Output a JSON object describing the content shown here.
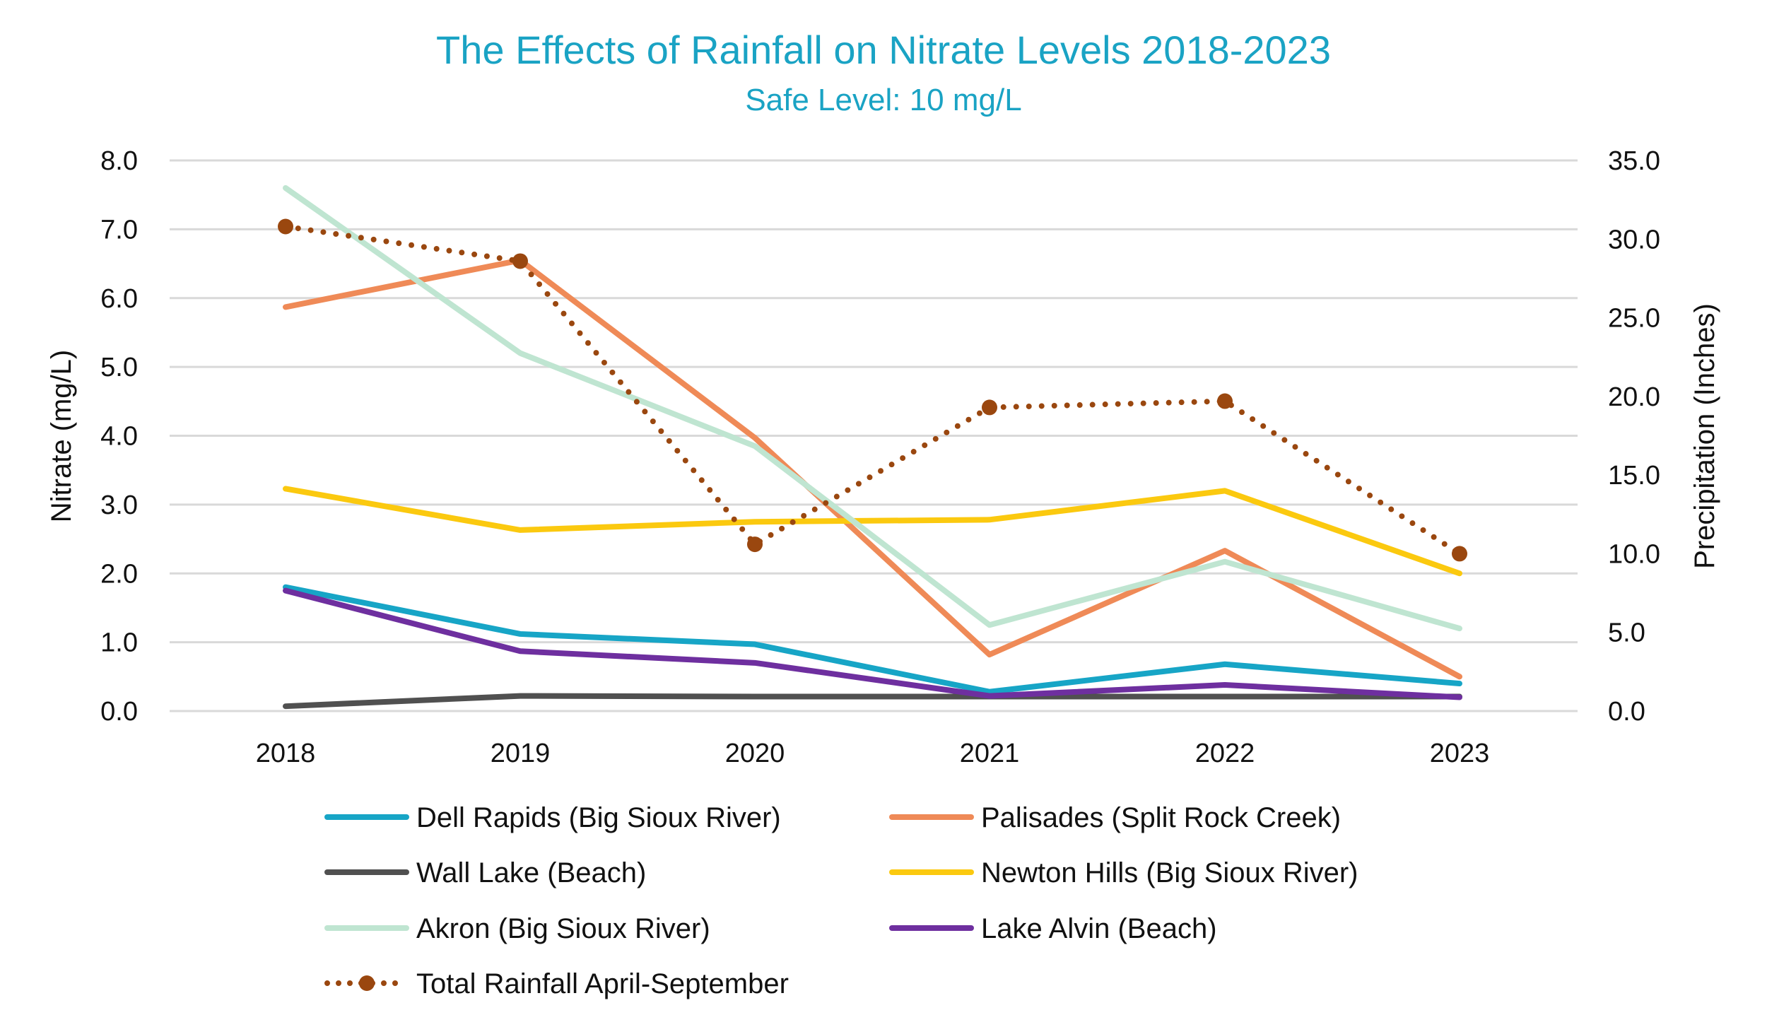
{
  "chart_data": {
    "type": "line",
    "title": "The Effects of Rainfall on Nitrate Levels 2018-2023",
    "subtitle": "Safe Level: 10 mg/L",
    "categories": [
      "2018",
      "2019",
      "2020",
      "2021",
      "2022",
      "2023"
    ],
    "ylabel": "Nitrate (mg/L)",
    "y2label": "Precipitation (Inches)",
    "ylim": [
      0,
      8
    ],
    "y2lim": [
      0,
      35
    ],
    "yticks": [
      "0.0",
      "1.0",
      "2.0",
      "3.0",
      "4.0",
      "5.0",
      "6.0",
      "7.0",
      "8.0"
    ],
    "y2ticks": [
      "0.0",
      "5.0",
      "10.0",
      "15.0",
      "20.0",
      "25.0",
      "30.0",
      "35.0"
    ],
    "grid": true,
    "legend_position": "bottom",
    "series": [
      {
        "name": "Dell Rapids (Big Sioux River)",
        "color": "#17a5c6",
        "axis": "left",
        "values": [
          1.8,
          1.12,
          0.97,
          0.28,
          0.68,
          0.4
        ]
      },
      {
        "name": "Palisades (Split Rock Creek)",
        "color": "#ef8a57",
        "axis": "left",
        "values": [
          5.87,
          6.55,
          3.97,
          0.82,
          2.33,
          0.5
        ]
      },
      {
        "name": "Wall Lake (Beach)",
        "color": "#505050",
        "axis": "left",
        "values": [
          0.07,
          0.22,
          0.21,
          0.21,
          0.21,
          0.21
        ]
      },
      {
        "name": "Newton Hills (Big Sioux River)",
        "color": "#fbc90f",
        "axis": "left",
        "values": [
          3.23,
          2.63,
          2.75,
          2.78,
          3.2,
          2.0
        ]
      },
      {
        "name": "Akron (Big Sioux River)",
        "color": "#bfe5d1",
        "axis": "left",
        "values": [
          7.6,
          5.2,
          3.85,
          1.25,
          2.17,
          1.2
        ]
      },
      {
        "name": "Lake Alvin (Beach)",
        "color": "#6e2f9f",
        "axis": "left",
        "values": [
          1.75,
          0.87,
          0.7,
          0.22,
          0.38,
          0.2
        ]
      },
      {
        "name": "Total Rainfall April-September",
        "color": "#9a470f",
        "axis": "right",
        "style": "dotted-markers",
        "values": [
          30.8,
          28.6,
          10.6,
          19.3,
          19.7,
          10.0
        ]
      }
    ]
  }
}
